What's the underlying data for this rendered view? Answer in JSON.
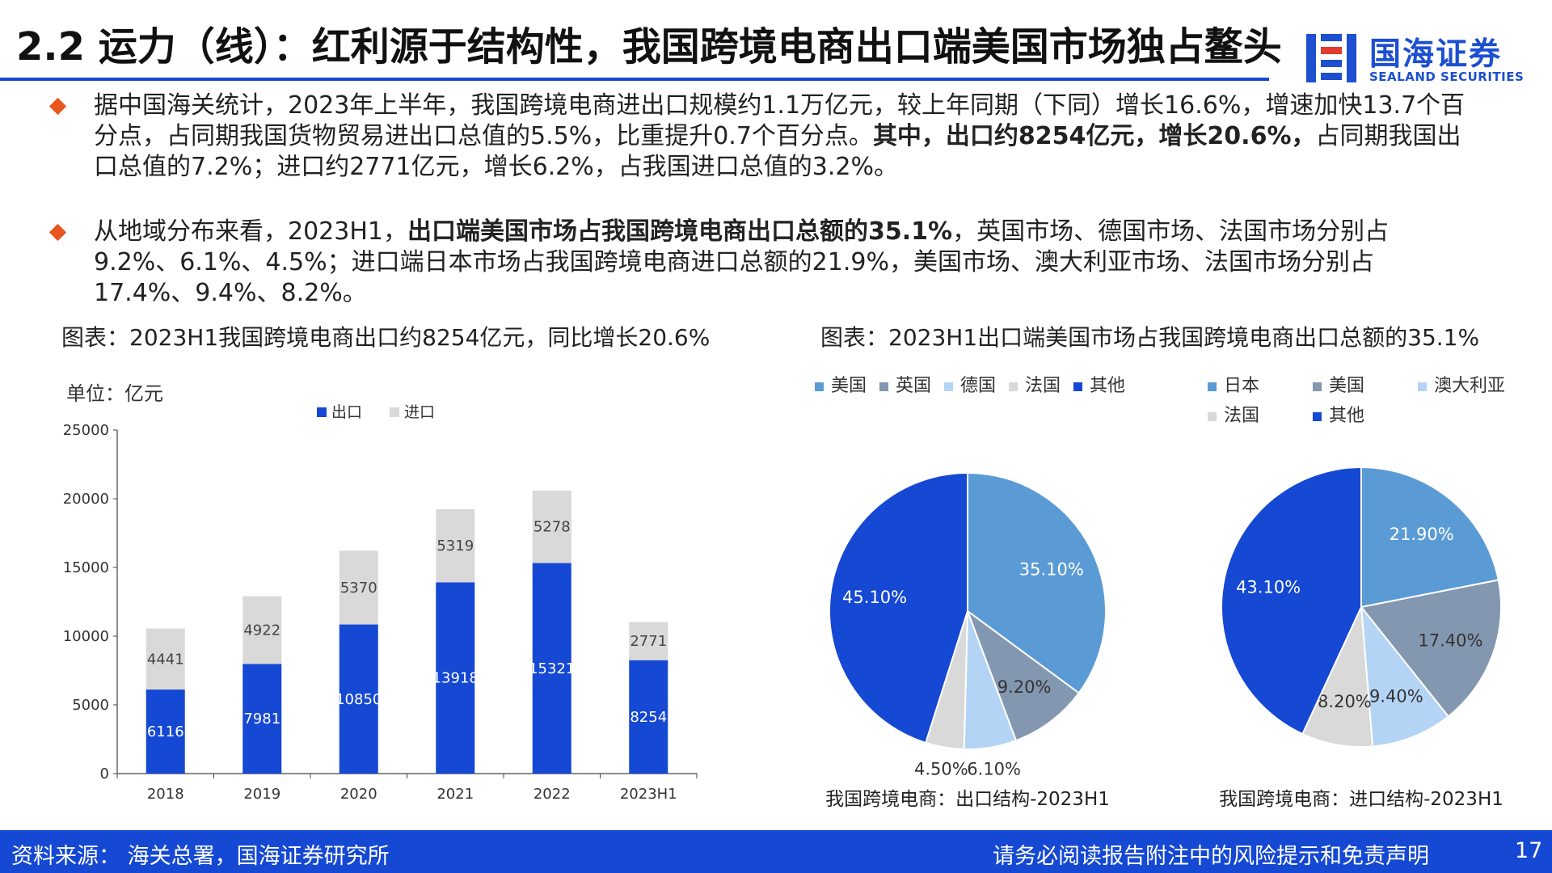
{
  "header": {
    "title": "2.2 运力（线）：红利源于结构性，我国跨境电商出口端美国市场独占鳌头",
    "logo_cn": "国海证券",
    "logo_en": "SEALAND SECURITIES",
    "accent_color": "#1548d3"
  },
  "bullets": [
    {
      "segments": [
        {
          "t": "据中国海关统计，2023年上半年，我国跨境电商进出口规模约1.1万亿元，较上年同期（下同）增长16.6%，增速加快13.7个百分点，占同期我国货物贸易进出口总值的5.5%，比重提升0.7个百分点。",
          "b": false
        },
        {
          "t": "其中，出口约8254亿元，增长20.6%，",
          "b": true
        },
        {
          "t": "占同期我国出口总值的7.2%；进口约2771亿元，增长6.2%，占我国进口总值的3.2%。",
          "b": false
        }
      ]
    },
    {
      "segments": [
        {
          "t": "从地域分布来看，2023H1，",
          "b": false
        },
        {
          "t": "出口端美国市场占我国跨境电商出口总额的35.1%",
          "b": true
        },
        {
          "t": "，英国市场、德国市场、法国市场分别占9.2%、6.1%、4.5%；进口端日本市场占我国跨境电商进口总额的21.9%，美国市场、澳大利亚市场、法国市场分别占17.4%、9.4%、8.2%。",
          "b": false
        }
      ]
    }
  ],
  "captions": {
    "left": "图表：2023H1我国跨境电商出口约8254亿元，同比增长20.6%",
    "right": "图表：2023H1出口端美国市场占我国跨境电商出口总额的35.1%"
  },
  "chart_data": [
    {
      "type": "bar",
      "stacked": true,
      "unit_label": "单位：亿元",
      "categories": [
        "2018",
        "2019",
        "2020",
        "2021",
        "2022",
        "2023H1"
      ],
      "series": [
        {
          "name": "出口",
          "values": [
            6116,
            7981,
            10850,
            13918,
            15321,
            8254
          ],
          "color": "#1548d3"
        },
        {
          "name": "进口",
          "values": [
            4441,
            4922,
            5370,
            5319,
            5278,
            2771
          ],
          "color": "#d9d9d9"
        }
      ],
      "ylim": [
        0,
        25000
      ],
      "yticks": [
        0,
        5000,
        10000,
        15000,
        20000,
        25000
      ],
      "legend_position": "top"
    },
    {
      "type": "pie",
      "title": "我国跨境电商：出口结构-2023H1",
      "labels": [
        "美国",
        "英国",
        "德国",
        "法国",
        "其他"
      ],
      "values": [
        35.1,
        9.2,
        6.1,
        4.5,
        45.1
      ],
      "value_labels": [
        "35.10%",
        "9.20%",
        "6.10%",
        "4.50%",
        "45.10%"
      ],
      "colors": [
        "#5b9bd5",
        "#8497b0",
        "#b4d4f5",
        "#d9d9d9",
        "#1548d3"
      ],
      "legend_position": "top"
    },
    {
      "type": "pie",
      "title": "我国跨境电商：进口结构-2023H1",
      "labels": [
        "日本",
        "美国",
        "澳大利亚",
        "法国",
        "其他"
      ],
      "values": [
        21.9,
        17.4,
        9.4,
        8.2,
        43.1
      ],
      "value_labels": [
        "21.90%",
        "17.40%",
        "9.40%",
        "8.20%",
        "43.10%"
      ],
      "colors": [
        "#5b9bd5",
        "#8497b0",
        "#b4d4f5",
        "#d9d9d9",
        "#1548d3"
      ],
      "legend_position": "top"
    }
  ],
  "footer": {
    "source": "资料来源：  海关总署，国海证券研究所",
    "disclaimer": "请务必阅读报告附注中的风险提示和免责声明",
    "page": "17"
  }
}
